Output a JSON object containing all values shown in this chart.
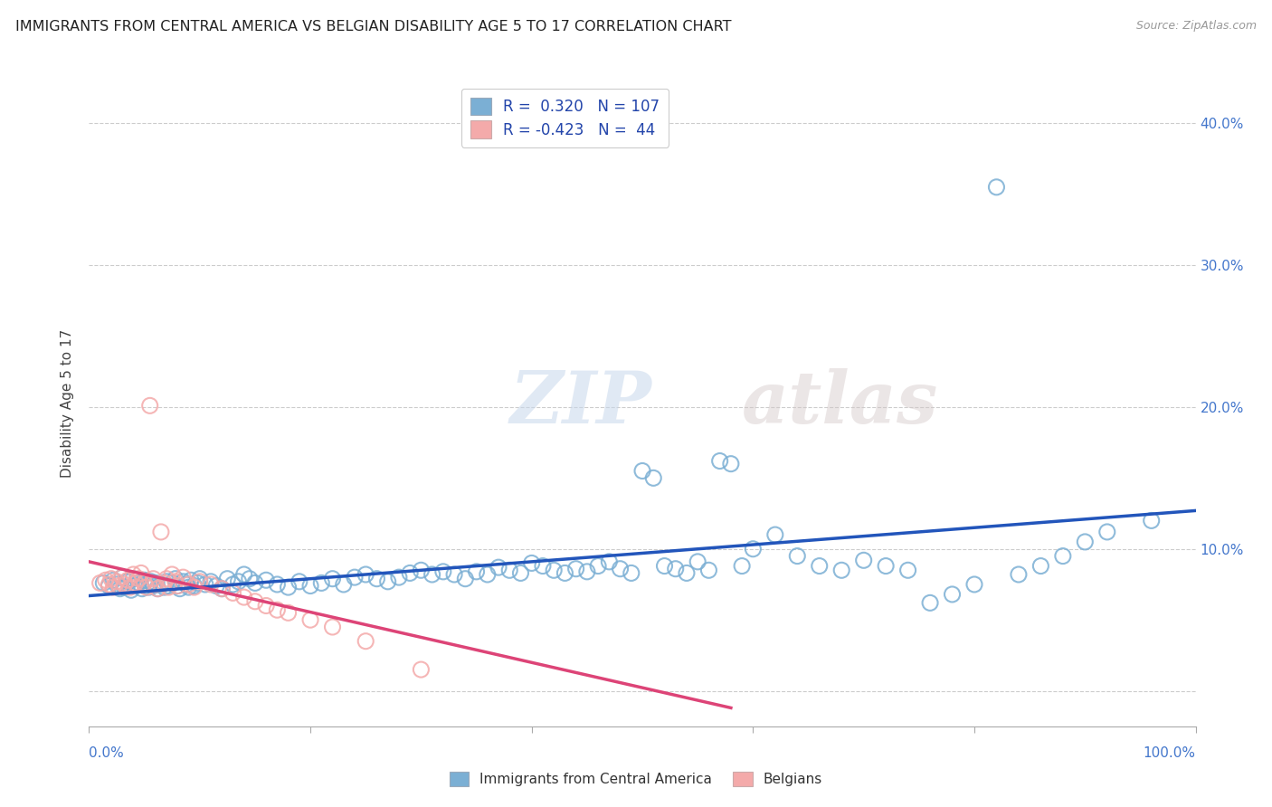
{
  "title": "IMMIGRANTS FROM CENTRAL AMERICA VS BELGIAN DISABILITY AGE 5 TO 17 CORRELATION CHART",
  "source": "Source: ZipAtlas.com",
  "ylabel": "Disability Age 5 to 17",
  "ytick_values": [
    0.0,
    0.1,
    0.2,
    0.3,
    0.4
  ],
  "xlim": [
    0.0,
    1.0
  ],
  "ylim": [
    -0.025,
    0.43
  ],
  "legend1_label": "Immigrants from Central America",
  "legend2_label": "Belgians",
  "r1": 0.32,
  "n1": 107,
  "r2": -0.423,
  "n2": 44,
  "blue_color": "#7BAFD4",
  "pink_color": "#F4AAAA",
  "blue_line_color": "#2255BB",
  "pink_line_color": "#DD4477",
  "watermark_zip": "ZIP",
  "watermark_atlas": "atlas",
  "background_color": "#FFFFFF",
  "grid_color": "#CCCCCC",
  "blue_scatter_x": [
    0.013,
    0.018,
    0.022,
    0.025,
    0.028,
    0.03,
    0.032,
    0.035,
    0.038,
    0.04,
    0.042,
    0.045,
    0.048,
    0.05,
    0.052,
    0.054,
    0.056,
    0.058,
    0.06,
    0.062,
    0.065,
    0.068,
    0.07,
    0.072,
    0.075,
    0.078,
    0.08,
    0.082,
    0.085,
    0.088,
    0.09,
    0.092,
    0.095,
    0.098,
    0.1,
    0.105,
    0.11,
    0.115,
    0.12,
    0.125,
    0.13,
    0.135,
    0.14,
    0.145,
    0.15,
    0.16,
    0.17,
    0.18,
    0.19,
    0.2,
    0.21,
    0.22,
    0.23,
    0.24,
    0.25,
    0.26,
    0.27,
    0.28,
    0.29,
    0.3,
    0.31,
    0.32,
    0.33,
    0.34,
    0.35,
    0.36,
    0.37,
    0.38,
    0.39,
    0.4,
    0.41,
    0.42,
    0.43,
    0.44,
    0.45,
    0.46,
    0.47,
    0.48,
    0.49,
    0.5,
    0.51,
    0.52,
    0.53,
    0.54,
    0.55,
    0.56,
    0.57,
    0.58,
    0.59,
    0.6,
    0.62,
    0.64,
    0.66,
    0.68,
    0.7,
    0.72,
    0.74,
    0.76,
    0.78,
    0.8,
    0.82,
    0.84,
    0.86,
    0.88,
    0.9,
    0.92,
    0.96
  ],
  "blue_scatter_y": [
    0.076,
    0.074,
    0.078,
    0.075,
    0.072,
    0.08,
    0.073,
    0.077,
    0.071,
    0.079,
    0.074,
    0.076,
    0.072,
    0.078,
    0.075,
    0.073,
    0.077,
    0.074,
    0.076,
    0.072,
    0.075,
    0.073,
    0.077,
    0.074,
    0.076,
    0.079,
    0.074,
    0.072,
    0.077,
    0.075,
    0.073,
    0.078,
    0.074,
    0.076,
    0.079,
    0.075,
    0.077,
    0.074,
    0.072,
    0.079,
    0.075,
    0.077,
    0.082,
    0.079,
    0.076,
    0.078,
    0.075,
    0.073,
    0.077,
    0.074,
    0.076,
    0.079,
    0.075,
    0.08,
    0.082,
    0.079,
    0.077,
    0.08,
    0.083,
    0.085,
    0.082,
    0.084,
    0.082,
    0.079,
    0.084,
    0.082,
    0.087,
    0.085,
    0.083,
    0.09,
    0.088,
    0.085,
    0.083,
    0.086,
    0.084,
    0.088,
    0.091,
    0.086,
    0.083,
    0.155,
    0.15,
    0.088,
    0.086,
    0.083,
    0.091,
    0.085,
    0.162,
    0.16,
    0.088,
    0.1,
    0.11,
    0.095,
    0.088,
    0.085,
    0.092,
    0.088,
    0.085,
    0.062,
    0.068,
    0.075,
    0.355,
    0.082,
    0.088,
    0.095,
    0.105,
    0.112,
    0.12
  ],
  "pink_scatter_x": [
    0.01,
    0.015,
    0.018,
    0.02,
    0.022,
    0.025,
    0.027,
    0.03,
    0.032,
    0.035,
    0.037,
    0.04,
    0.042,
    0.045,
    0.047,
    0.05,
    0.052,
    0.055,
    0.058,
    0.06,
    0.062,
    0.065,
    0.068,
    0.07,
    0.072,
    0.075,
    0.078,
    0.08,
    0.085,
    0.09,
    0.095,
    0.1,
    0.11,
    0.12,
    0.13,
    0.14,
    0.15,
    0.16,
    0.17,
    0.18,
    0.2,
    0.22,
    0.25,
    0.3
  ],
  "pink_scatter_y": [
    0.076,
    0.078,
    0.075,
    0.079,
    0.073,
    0.077,
    0.074,
    0.08,
    0.075,
    0.078,
    0.073,
    0.082,
    0.076,
    0.079,
    0.083,
    0.076,
    0.073,
    0.201,
    0.079,
    0.075,
    0.072,
    0.112,
    0.076,
    0.079,
    0.073,
    0.082,
    0.077,
    0.074,
    0.08,
    0.075,
    0.073,
    0.077,
    0.075,
    0.072,
    0.069,
    0.066,
    0.063,
    0.06,
    0.057,
    0.055,
    0.05,
    0.045,
    0.035,
    0.015
  ],
  "blue_trendline": [
    0.0,
    1.0,
    0.067,
    0.127
  ],
  "pink_trendline": [
    0.0,
    0.58,
    0.091,
    -0.012
  ]
}
